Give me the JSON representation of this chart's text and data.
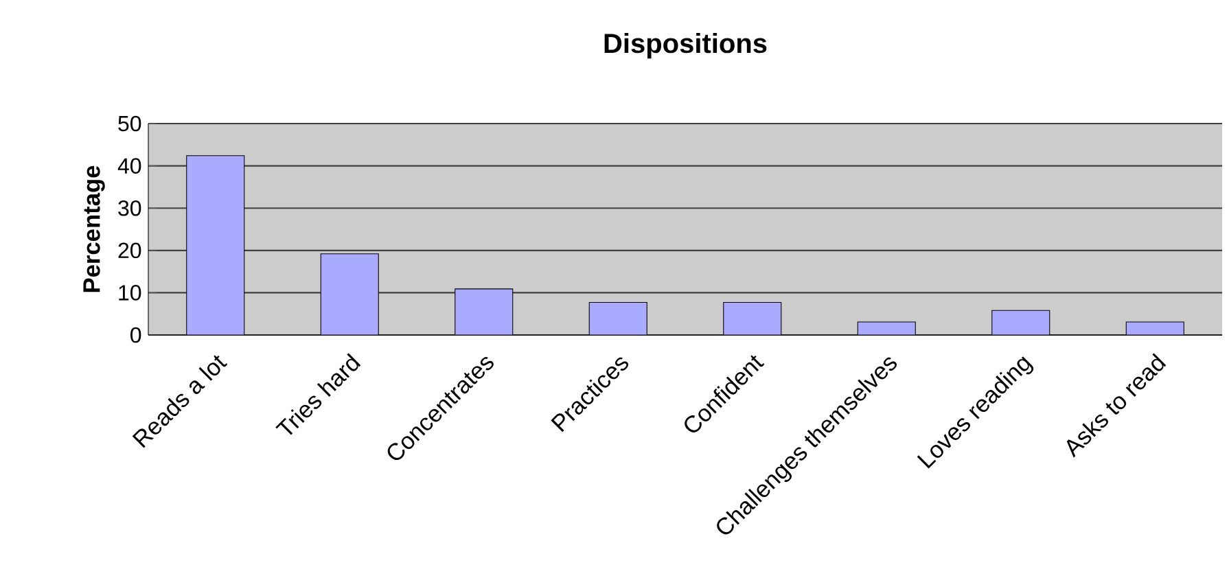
{
  "chart_data": {
    "type": "bar",
    "title": "Dispositions",
    "ylabel": "Percentage",
    "categories": [
      "Reads a lot",
      "Tries hard",
      "Concentrates",
      "Practices",
      "Confident",
      "Challenges themselves",
      "Loves reading",
      "Asks to read"
    ],
    "values": [
      42.4,
      19.2,
      10.9,
      7.7,
      7.7,
      3.1,
      5.8,
      3.1
    ],
    "color": "#aaaaff",
    "ylim": [
      0,
      50
    ],
    "yticks": [
      0,
      10,
      20,
      30,
      40,
      50
    ],
    "grid": "y"
  }
}
